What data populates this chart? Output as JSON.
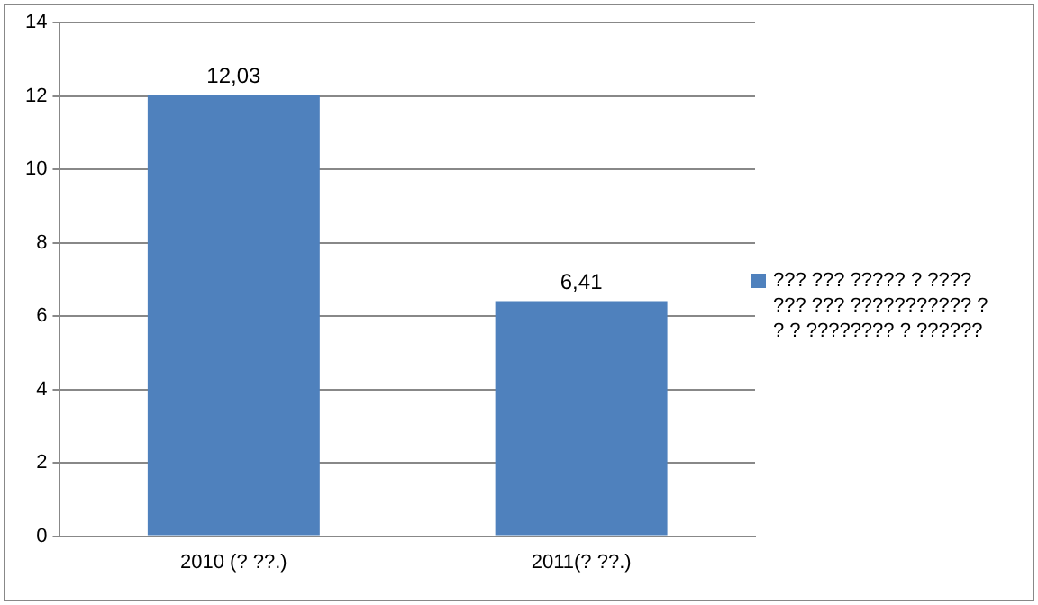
{
  "chart_data": {
    "type": "bar",
    "categories": [
      "2010 (? ??.)",
      "2011(? ??.)"
    ],
    "series": [
      {
        "name": "??? ??? ????? ? ???? ??? ??? ??????????? ? ? ? ???????? ? ??????",
        "color": "#4f81bd",
        "values": [
          12.03,
          6.41
        ]
      }
    ],
    "value_labels": [
      "12,03",
      "6,41"
    ],
    "ylim": [
      0,
      14
    ],
    "yticks": [
      0,
      2,
      4,
      6,
      8,
      10,
      12,
      14
    ],
    "grid": "y",
    "legend": "right"
  }
}
